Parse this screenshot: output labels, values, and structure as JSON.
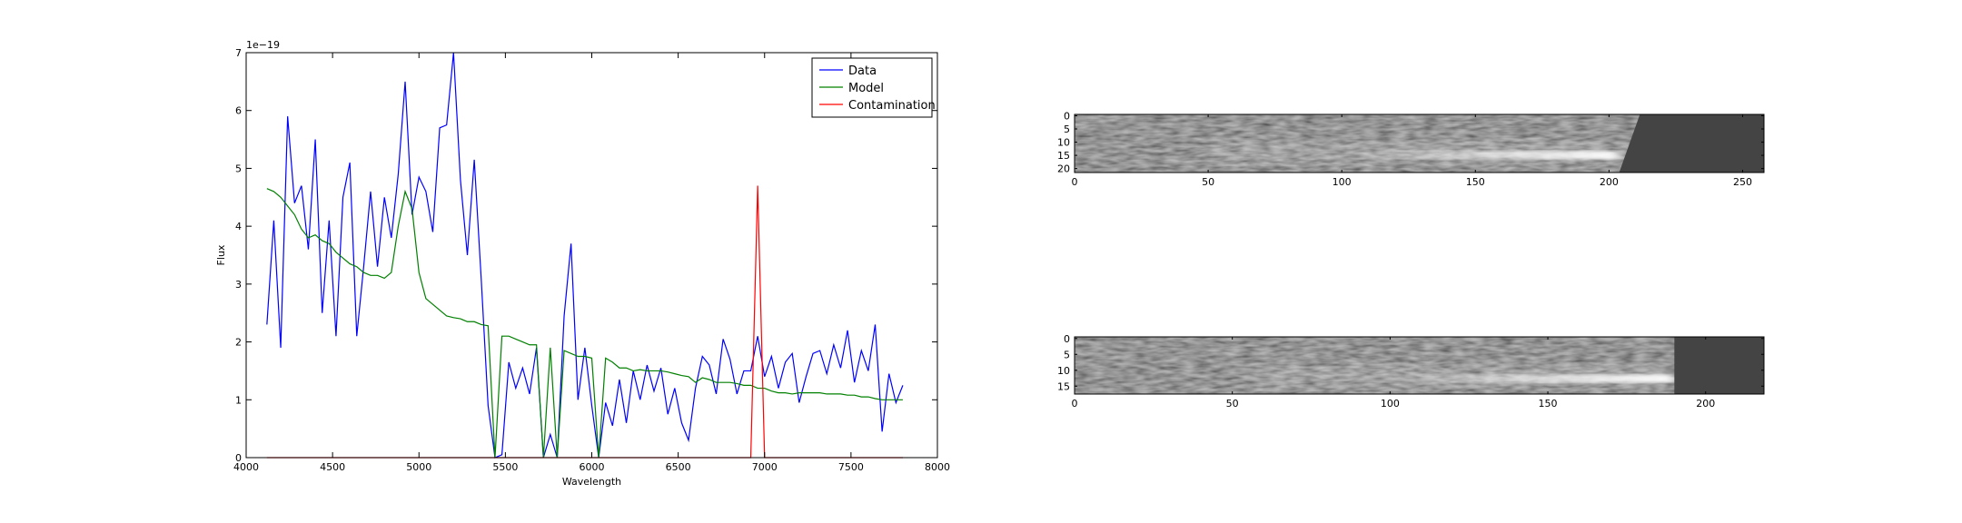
{
  "chart_data": [
    {
      "type": "line",
      "x_label": "Wavelength",
      "y_label": "Flux",
      "y_offset_label": "1e−19",
      "xlim": [
        4000,
        8000
      ],
      "xticks": [
        4000,
        4500,
        5000,
        5500,
        6000,
        6500,
        7000,
        7500,
        8000
      ],
      "ylim": [
        0,
        7
      ],
      "yticks": [
        0,
        1,
        2,
        3,
        4,
        5,
        6,
        7
      ],
      "legend": "upper right",
      "x": [
        4120,
        4160,
        4200,
        4240,
        4280,
        4320,
        4360,
        4400,
        4440,
        4480,
        4520,
        4560,
        4600,
        4640,
        4680,
        4720,
        4760,
        4800,
        4840,
        4880,
        4920,
        4960,
        5000,
        5040,
        5080,
        5120,
        5160,
        5200,
        5240,
        5280,
        5320,
        5360,
        5400,
        5440,
        5480,
        5520,
        5560,
        5600,
        5640,
        5680,
        5720,
        5760,
        5800,
        5840,
        5880,
        5920,
        5960,
        6000,
        6040,
        6080,
        6120,
        6160,
        6200,
        6240,
        6280,
        6320,
        6360,
        6400,
        6440,
        6480,
        6520,
        6560,
        6600,
        6640,
        6680,
        6720,
        6760,
        6800,
        6840,
        6880,
        6920,
        6960,
        7000,
        7040,
        7080,
        7120,
        7160,
        7200,
        7240,
        7280,
        7320,
        7360,
        7400,
        7440,
        7480,
        7520,
        7560,
        7600,
        7640,
        7680,
        7720,
        7760,
        7800
      ],
      "series": [
        {
          "name": "Data",
          "color": "#0000ff",
          "values": [
            2.3,
            4.1,
            1.9,
            5.9,
            4.4,
            4.7,
            3.6,
            5.5,
            2.5,
            4.1,
            2.1,
            4.5,
            5.1,
            2.1,
            3.3,
            4.6,
            3.3,
            4.5,
            3.8,
            4.9,
            6.5,
            4.2,
            4.85,
            4.6,
            3.9,
            5.7,
            5.75,
            7.0,
            4.8,
            3.5,
            5.15,
            3.1,
            0.9,
            0.0,
            0.05,
            1.65,
            1.2,
            1.55,
            1.1,
            1.9,
            0.0,
            0.4,
            0.0,
            2.45,
            3.7,
            1.0,
            1.9,
            0.9,
            0.0,
            0.95,
            0.55,
            1.35,
            0.6,
            1.5,
            1.0,
            1.6,
            1.15,
            1.55,
            0.75,
            1.2,
            0.6,
            0.3,
            1.2,
            1.75,
            1.6,
            1.1,
            2.05,
            1.7,
            1.1,
            1.5,
            1.5,
            2.1,
            1.4,
            1.75,
            1.2,
            1.65,
            1.8,
            0.95,
            1.4,
            1.8,
            1.85,
            1.45,
            1.95,
            1.55,
            2.2,
            1.3,
            1.85,
            1.5,
            2.3,
            0.45,
            1.45,
            0.95,
            1.25
          ]
        },
        {
          "name": "Model",
          "color": "#008000",
          "values": [
            4.65,
            4.6,
            4.5,
            4.35,
            4.2,
            3.95,
            3.8,
            3.85,
            3.75,
            3.7,
            3.55,
            3.45,
            3.35,
            3.3,
            3.2,
            3.15,
            3.15,
            3.1,
            3.2,
            4.0,
            4.6,
            4.3,
            3.2,
            2.75,
            2.65,
            2.55,
            2.45,
            2.42,
            2.4,
            2.35,
            2.35,
            2.3,
            2.28,
            0.0,
            2.1,
            2.1,
            2.05,
            2.0,
            1.95,
            1.95,
            0.0,
            1.9,
            0.0,
            1.85,
            1.8,
            1.75,
            1.75,
            1.72,
            0.0,
            1.72,
            1.65,
            1.55,
            1.55,
            1.5,
            1.52,
            1.5,
            1.5,
            1.5,
            1.48,
            1.45,
            1.42,
            1.4,
            1.3,
            1.38,
            1.35,
            1.3,
            1.3,
            1.3,
            1.28,
            1.25,
            1.25,
            1.2,
            1.2,
            1.15,
            1.12,
            1.12,
            1.1,
            1.12,
            1.12,
            1.12,
            1.12,
            1.1,
            1.1,
            1.1,
            1.08,
            1.08,
            1.05,
            1.05,
            1.02,
            1.0,
            1.0,
            1.0,
            1.0
          ]
        },
        {
          "name": "Contamination",
          "color": "#ff0000",
          "values": [
            0,
            0,
            0,
            0,
            0,
            0,
            0,
            0,
            0,
            0,
            0,
            0,
            0,
            0,
            0,
            0,
            0,
            0,
            0,
            0,
            0,
            0,
            0,
            0,
            0,
            0,
            0,
            0,
            0,
            0,
            0,
            0,
            0,
            0,
            0,
            0,
            0,
            0,
            0,
            0,
            0,
            0,
            0,
            0,
            0,
            0,
            0,
            0,
            0,
            0,
            0,
            0,
            0,
            0,
            0,
            0,
            0,
            0,
            0,
            0,
            0,
            0,
            0,
            0,
            0,
            0,
            0,
            0,
            0,
            0,
            0,
            4.7,
            0,
            0,
            0,
            0,
            0,
            0,
            0,
            0,
            0,
            0,
            0,
            0,
            0,
            0,
            0,
            0,
            0,
            0,
            0,
            0,
            0
          ]
        }
      ]
    },
    {
      "type": "image",
      "xlim": [
        0,
        258
      ],
      "xticks": [
        0,
        50,
        100,
        150,
        200,
        250
      ],
      "ylim": [
        -0.5,
        21.5
      ],
      "yticks": [
        0,
        5,
        10,
        15,
        20
      ],
      "y_inverted": true
    },
    {
      "type": "image",
      "xlim": [
        0,
        218.5
      ],
      "xticks": [
        0,
        50,
        100,
        150,
        200
      ],
      "ylim": [
        -0.5,
        17.5
      ],
      "yticks": [
        0,
        5,
        10,
        15
      ],
      "y_inverted": true
    }
  ]
}
